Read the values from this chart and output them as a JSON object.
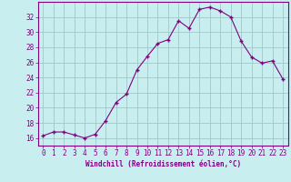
{
  "x": [
    0,
    1,
    2,
    3,
    4,
    5,
    6,
    7,
    8,
    9,
    10,
    11,
    12,
    13,
    14,
    15,
    16,
    17,
    18,
    19,
    20,
    21,
    22,
    23
  ],
  "y": [
    16.3,
    16.8,
    16.8,
    16.4,
    16.0,
    16.5,
    18.3,
    20.7,
    21.8,
    25.0,
    26.8,
    28.5,
    29.0,
    31.5,
    30.5,
    33.0,
    33.3,
    32.8,
    32.0,
    28.8,
    26.7,
    25.9,
    26.2,
    23.8
  ],
  "line_color": "#800080",
  "marker": "+",
  "bg_color": "#c8eef0",
  "grid_color": "#a0c8c8",
  "axis_color": "#800080",
  "xlabel": "Windchill (Refroidissement éolien,°C)",
  "ylim": [
    15.0,
    34.0
  ],
  "yticks": [
    16,
    18,
    20,
    22,
    24,
    26,
    28,
    30,
    32
  ],
  "xlim": [
    -0.5,
    23.5
  ],
  "xticks": [
    0,
    1,
    2,
    3,
    4,
    5,
    6,
    7,
    8,
    9,
    10,
    11,
    12,
    13,
    14,
    15,
    16,
    17,
    18,
    19,
    20,
    21,
    22,
    23
  ],
  "xlabel_fontsize": 5.5,
  "tick_fontsize": 5.5,
  "linewidth": 0.8,
  "markersize": 3.5
}
